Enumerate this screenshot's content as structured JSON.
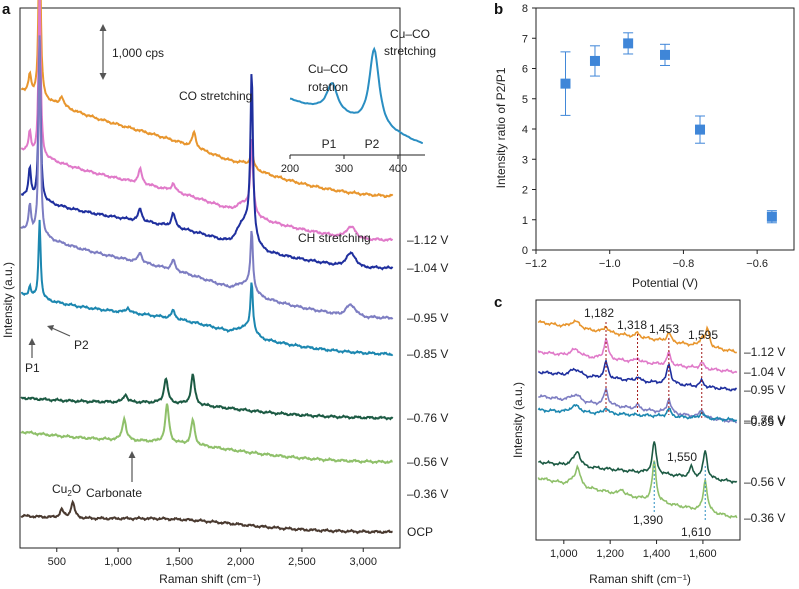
{
  "chart_data": [
    {
      "panel": "a",
      "type": "line",
      "xlabel": "Raman shift (cm⁻¹)",
      "ylabel": "Intensity (a.u.)",
      "xlim": [
        200,
        3300
      ],
      "xticks": [
        500,
        1000,
        1500,
        2000,
        2500,
        3000
      ],
      "xtick_labels": [
        "500",
        "1,000",
        "1,500",
        "2,000",
        "2,500",
        "3,000"
      ],
      "scale_bar_label": "1,000 cps",
      "annotations": {
        "co": "CO stretching",
        "ch": "CH stretching",
        "carbonate": "Carbonate",
        "cu2o_base": "Cu",
        "cu2o_sub": "2",
        "cu2o_tail": "O",
        "p1": "P1",
        "p2": "P2"
      },
      "series": [
        {
          "name": "top",
          "label": "",
          "color": "#e8962e"
        },
        {
          "name": "-1.12 V",
          "label": "–1.12 V",
          "color": "#e07ac9"
        },
        {
          "name": "-1.04 V",
          "label": "–1.04 V",
          "color": "#1f2f9e"
        },
        {
          "name": "-0.95 V",
          "label": "–0.95 V",
          "color": "#7d7dc2"
        },
        {
          "name": "-0.85 V",
          "label": "–0.85 V",
          "color": "#1c87b0"
        },
        {
          "name": "-0.76 V",
          "label": "–0.76 V",
          "color": "#1c5a43"
        },
        {
          "name": "-0.56 V",
          "label": "–0.56 V",
          "color": "#8fc06a"
        },
        {
          "name": "-0.36 V",
          "label": "–0.36 V",
          "color": ""
        },
        {
          "name": "OCP",
          "label": "OCP",
          "color": "#4a3a30"
        }
      ],
      "inset": {
        "title_p1": [
          "Cu–CO",
          "rotation"
        ],
        "title_p2": [
          "Cu–CO",
          "stretching"
        ],
        "xlim": [
          200,
          450
        ],
        "xticks": [
          200,
          300,
          400
        ],
        "xtick_labels": [
          "200",
          "300",
          "400"
        ],
        "p1": "P1",
        "p2": "P2",
        "color": "#2a8ec2"
      }
    },
    {
      "panel": "b",
      "type": "scatter",
      "xlabel": "Potential (V)",
      "ylabel": "Intensity ratio of P2/P1",
      "xlim": [
        -1.2,
        -0.5
      ],
      "ylim": [
        0,
        8
      ],
      "xticks": [
        -1.2,
        -1.0,
        -0.8,
        -0.6
      ],
      "xtick_labels": [
        "−1.2",
        "−1.0",
        "−0.8",
        "−0.6"
      ],
      "yticks": [
        0,
        1,
        2,
        3,
        4,
        5,
        6,
        7,
        8
      ],
      "color": "#3f86d8",
      "points": [
        {
          "x": -1.12,
          "y": 5.5,
          "err": 1.05
        },
        {
          "x": -1.04,
          "y": 6.25,
          "err": 0.5
        },
        {
          "x": -0.95,
          "y": 6.83,
          "err": 0.35
        },
        {
          "x": -0.85,
          "y": 6.45,
          "err": 0.35
        },
        {
          "x": -0.755,
          "y": 3.98,
          "err": 0.45
        },
        {
          "x": -0.56,
          "y": 1.1,
          "err": 0.2
        }
      ]
    },
    {
      "panel": "c",
      "type": "line",
      "xlabel": "Raman shift (cm⁻¹)",
      "ylabel": "Intensity (a.u.)",
      "xlim": [
        880,
        1760
      ],
      "xticks": [
        1000,
        1200,
        1400,
        1600
      ],
      "xtick_labels": [
        "1,000",
        "1,200",
        "1,400",
        "1,600"
      ],
      "peak_labels": [
        "1,182",
        "1,318",
        "1,453",
        "1,595",
        "1,550",
        "1,390",
        "1,610"
      ],
      "series": [
        {
          "name": "-1.12 V",
          "label": "–1.12 V",
          "color": "#e8962e"
        },
        {
          "name": "-1.04 V",
          "label": "–1.04 V",
          "color": "#e07ac9"
        },
        {
          "name": "-0.95 V",
          "label": "–0.95 V",
          "color": "#1f2f9e"
        },
        {
          "name": "-0.85 V",
          "label": "–0.85 V",
          "color": "#7d7dc2"
        },
        {
          "name": "-0.76 V",
          "label": "–0.76 V",
          "color": "#1c87b0"
        },
        {
          "name": "-0.56 V",
          "label": "–0.56 V",
          "color": "#1c5a43"
        },
        {
          "name": "-0.36 V",
          "label": "–0.36 V",
          "color": "#8fc06a"
        }
      ]
    }
  ]
}
